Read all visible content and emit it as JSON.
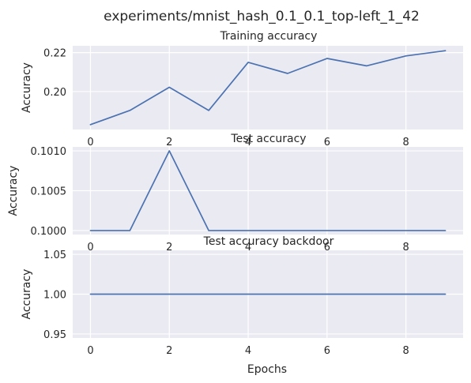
{
  "figure": {
    "suptitle": "experiments/mnist_hash_0.1_0.1_top-left_1_42",
    "colors": {
      "background": "#eaeaf2",
      "grid": "#ffffff",
      "line": "#4c72b0",
      "text": "#262626"
    }
  },
  "chart_data": [
    {
      "type": "line",
      "title": "Training accuracy",
      "xlabel": "",
      "ylabel": "Accuracy",
      "x": [
        0,
        1,
        2,
        3,
        4,
        5,
        6,
        7,
        8,
        9
      ],
      "series": [
        {
          "values": [
            0.183,
            0.1903,
            0.2022,
            0.1903,
            0.215,
            0.2093,
            0.217,
            0.2132,
            0.2183,
            0.221
          ]
        }
      ],
      "xlim": [
        -0.45,
        9.45
      ],
      "ylim": [
        0.1805,
        0.2235
      ],
      "xticks": [
        0,
        2,
        4,
        6,
        8
      ],
      "xtick_labels": [
        "0",
        "2",
        "4",
        "6",
        "8"
      ],
      "yticks": [
        0.2,
        0.22
      ],
      "ytick_labels": [
        "0.20",
        "0.22"
      ],
      "grid": true
    },
    {
      "type": "line",
      "title": "Test accuracy",
      "xlabel": "",
      "ylabel": "Accuracy",
      "x": [
        0,
        1,
        2,
        3,
        4,
        5,
        6,
        7,
        8,
        9
      ],
      "series": [
        {
          "values": [
            0.1,
            0.1,
            0.101,
            0.1,
            0.1,
            0.1,
            0.1,
            0.1,
            0.1,
            0.1
          ]
        }
      ],
      "xlim": [
        -0.45,
        9.45
      ],
      "ylim": [
        0.09995,
        0.10105
      ],
      "xticks": [
        0,
        2,
        4,
        6,
        8
      ],
      "xtick_labels": [
        "0",
        "2",
        "4",
        "6",
        "8"
      ],
      "yticks": [
        0.1,
        0.1005,
        0.101
      ],
      "ytick_labels": [
        "0.1000",
        "0.1005",
        "0.1010"
      ],
      "grid": true
    },
    {
      "type": "line",
      "title": "Test accuracy backdoor",
      "xlabel": "Epochs",
      "ylabel": "Accuracy",
      "x": [
        0,
        1,
        2,
        3,
        4,
        5,
        6,
        7,
        8,
        9
      ],
      "series": [
        {
          "values": [
            1.0,
            1.0,
            1.0,
            1.0,
            1.0,
            1.0,
            1.0,
            1.0,
            1.0,
            1.0
          ]
        }
      ],
      "xlim": [
        -0.45,
        9.45
      ],
      "ylim": [
        0.945,
        1.055
      ],
      "xticks": [
        0,
        2,
        4,
        6,
        8
      ],
      "xtick_labels": [
        "0",
        "2",
        "4",
        "6",
        "8"
      ],
      "yticks": [
        0.95,
        1.0,
        1.05
      ],
      "ytick_labels": [
        "0.95",
        "1.00",
        "1.05"
      ],
      "grid": true
    }
  ]
}
